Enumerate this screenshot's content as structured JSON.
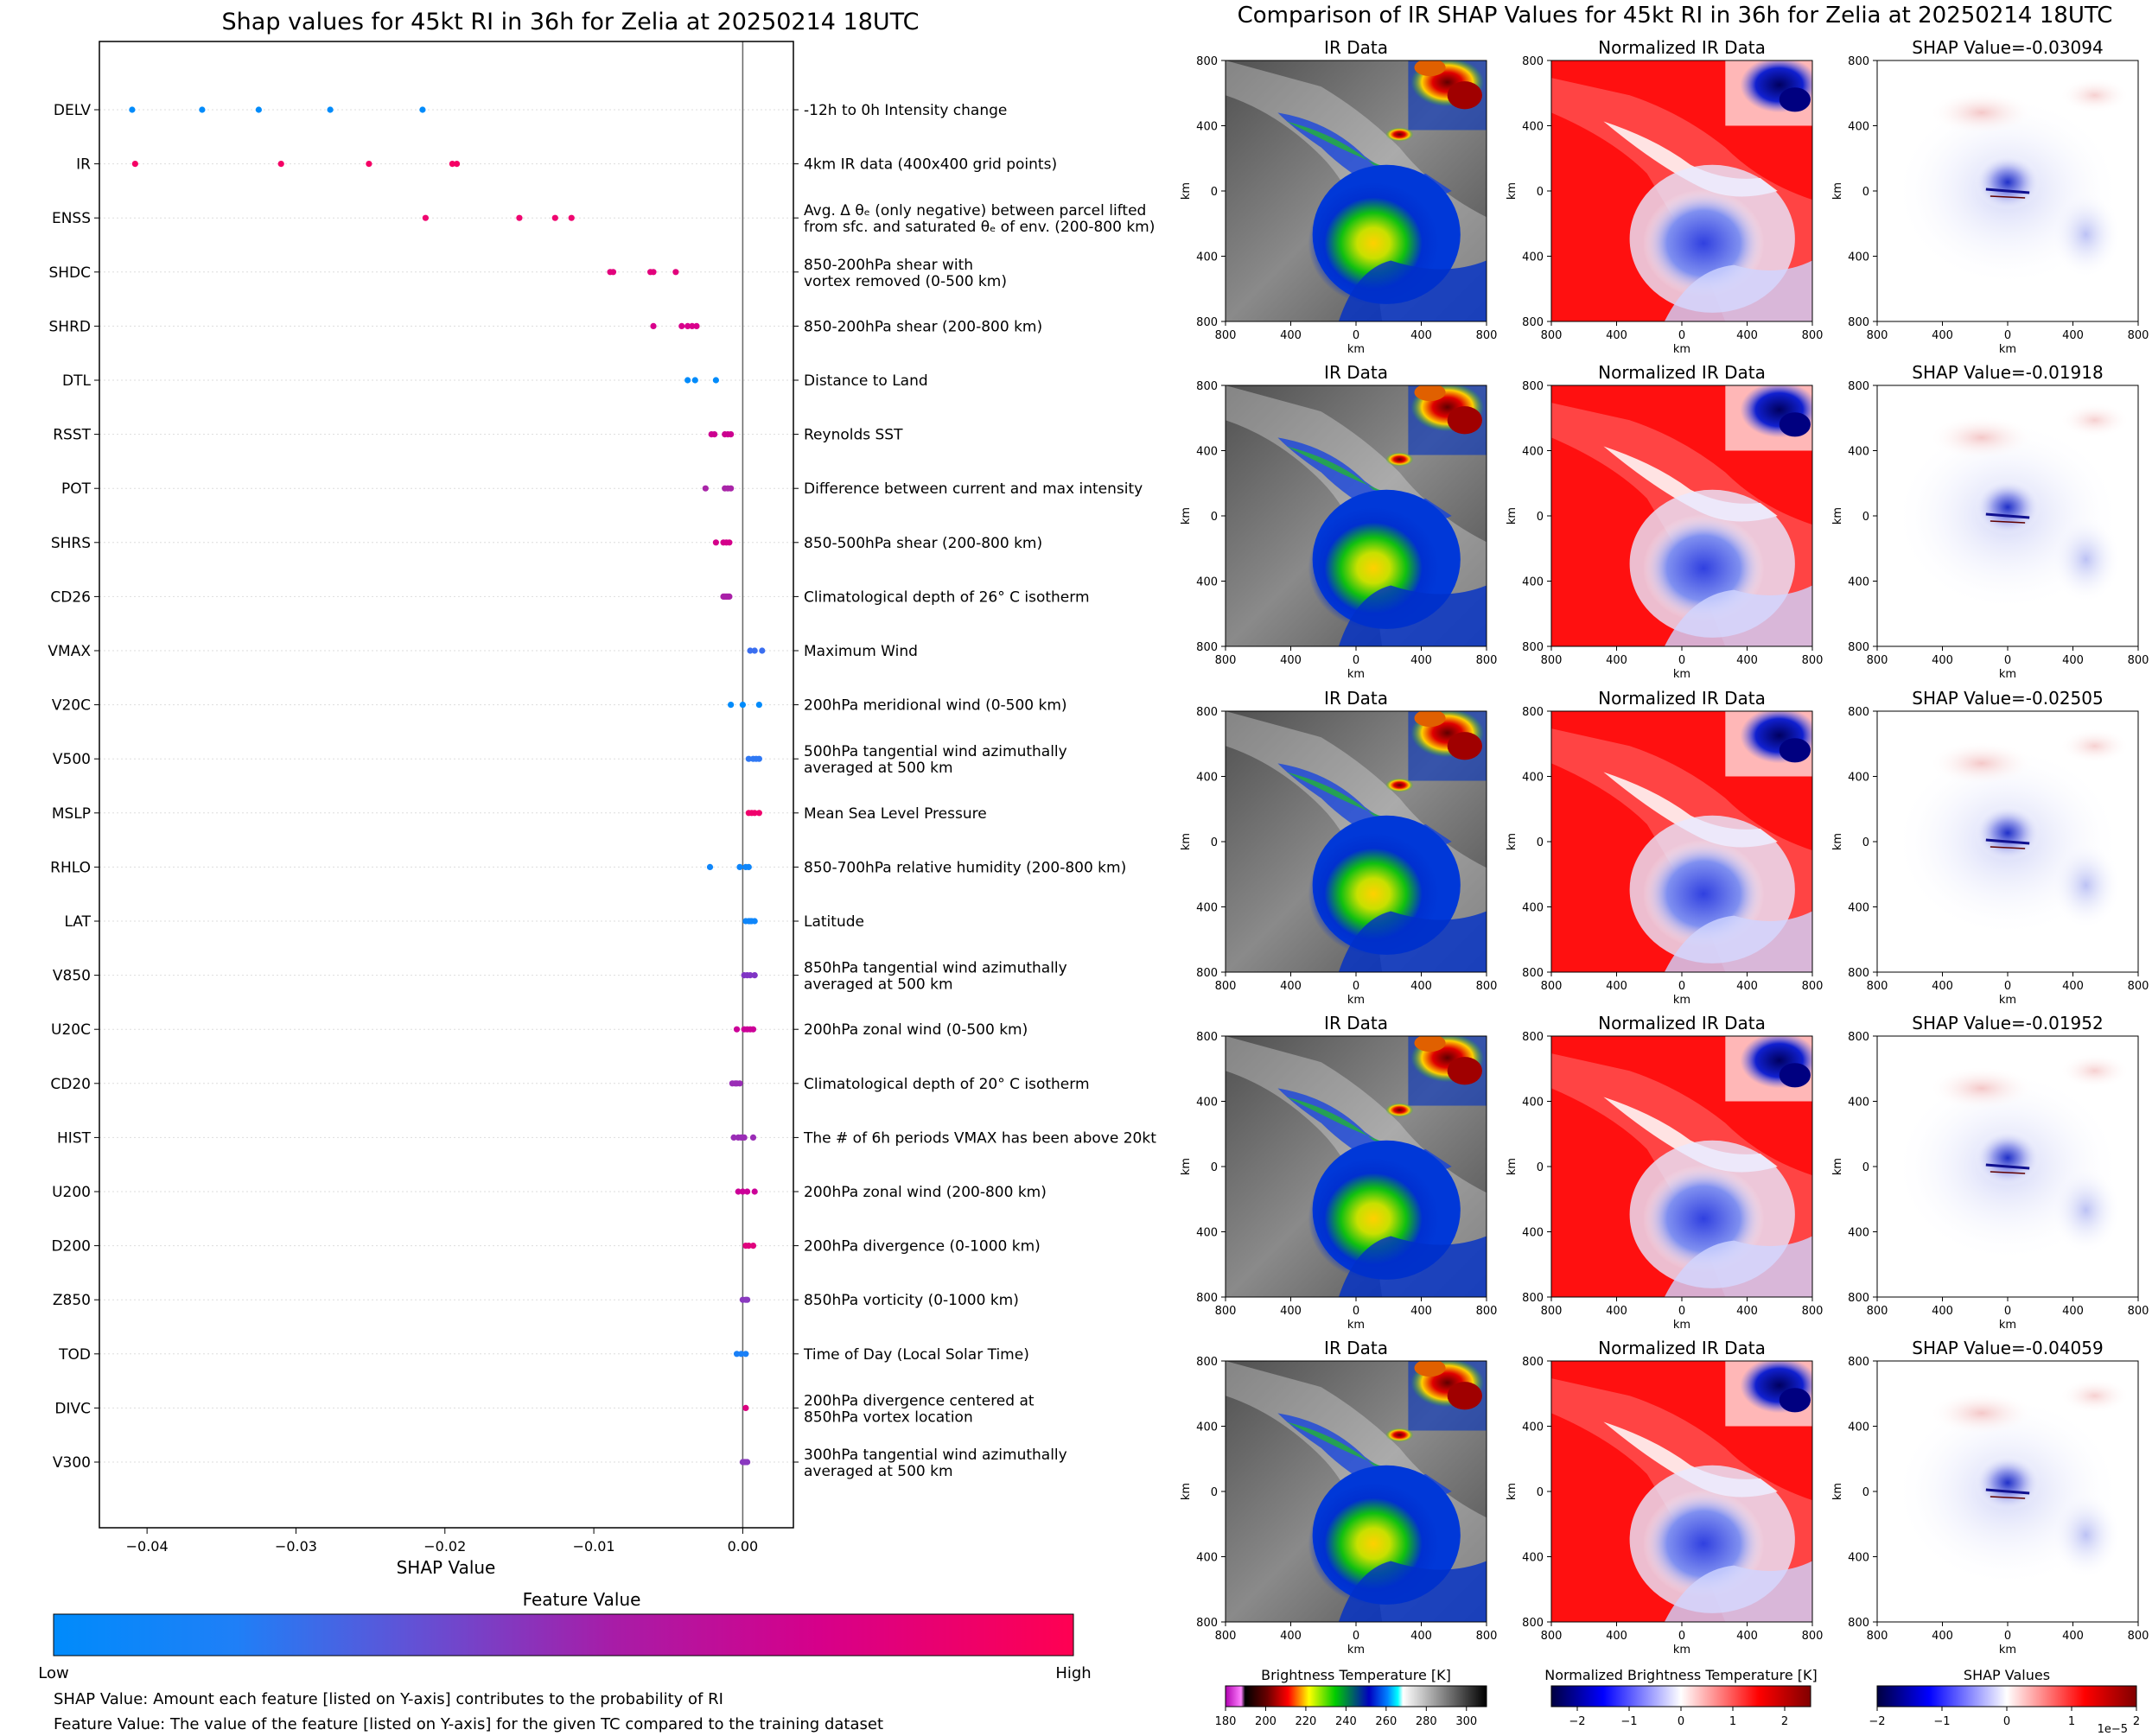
{
  "chart_data": [
    {
      "type": "scatter",
      "subtype": "shap-beeswarm",
      "title": "Shap values for 45kt RI in 36h for Zelia at 20250214 18UTC",
      "xlabel": "SHAP Value",
      "xlim": [
        -0.0432,
        0.0034
      ],
      "xticks": [
        -0.04,
        -0.03,
        -0.02,
        -0.01,
        0.0
      ],
      "xtick_labels": [
        "−0.04",
        "−0.03",
        "−0.02",
        "−0.01",
        "0.00"
      ],
      "colorbar": {
        "title": "Feature Value",
        "low_label": "Low",
        "high_label": "High",
        "low_color": "#008bfb",
        "high_color": "#ff0052"
      },
      "footnotes": [
        "SHAP Value: Amount each feature [listed on Y-axis] contributes to the probability of RI",
        "Feature Value: The value of the feature [listed on Y-axis] for the given TC compared to the training dataset"
      ],
      "features": [
        {
          "name": "DELV",
          "desc": [
            "-12h to 0h Intensity change"
          ],
          "color": "#008bfb",
          "values": [
            -0.041,
            -0.0363,
            -0.0325,
            -0.0277,
            -0.0215
          ]
        },
        {
          "name": "IR",
          "desc": [
            "4km IR data (400x400 grid points)"
          ],
          "color": "#f50065",
          "values": [
            -0.0408,
            -0.031,
            -0.0251,
            -0.0195,
            -0.0192
          ]
        },
        {
          "name": "ENSS",
          "desc": [
            "Avg. Δ θₑ (only negative) between parcel lifted",
            "from sfc. and saturated θₑ of env. (200-800 km)"
          ],
          "color": "#ef0670",
          "values": [
            -0.0213,
            -0.015,
            -0.0126,
            -0.0115
          ]
        },
        {
          "name": "SHDC",
          "desc": [
            "850-200hPa shear with",
            "vortex removed (0-500 km)"
          ],
          "color": "#e2007c",
          "values": [
            -0.0089,
            -0.0087,
            -0.0062,
            -0.006,
            -0.0045
          ]
        },
        {
          "name": "SHRD",
          "desc": [
            "850-200hPa shear (200-800 km)"
          ],
          "color": "#d9008c",
          "values": [
            -0.006,
            -0.0041,
            -0.0037,
            -0.0034,
            -0.0031
          ]
        },
        {
          "name": "DTL",
          "desc": [
            "Distance to Land"
          ],
          "color": "#008bfb",
          "values": [
            -0.0037,
            -0.0032,
            -0.0018
          ]
        },
        {
          "name": "RSST",
          "desc": [
            "Reynolds SST"
          ],
          "color": "#cc0090",
          "values": [
            -0.0021,
            -0.0019,
            -0.0012,
            -0.001,
            -0.0008
          ]
        },
        {
          "name": "POT",
          "desc": [
            "Difference between current and max intensity"
          ],
          "color": "#a925a8",
          "values": [
            -0.0025,
            -0.0012,
            -0.001,
            -0.0008
          ]
        },
        {
          "name": "SHRS",
          "desc": [
            "850-500hPa shear (200-800 km)"
          ],
          "color": "#d4008a",
          "values": [
            -0.0018,
            -0.0013,
            -0.0011,
            -0.0009
          ]
        },
        {
          "name": "CD26",
          "desc": [
            "Climatological depth of 26° C isotherm"
          ],
          "color": "#a920a8",
          "values": [
            -0.0013,
            -0.0012,
            -0.0011,
            -0.001,
            -0.0009
          ]
        },
        {
          "name": "VMAX",
          "desc": [
            "Maximum Wind"
          ],
          "color": "#3a6ef0",
          "values": [
            0.0005,
            0.0008,
            0.0013
          ]
        },
        {
          "name": "V20C",
          "desc": [
            "200hPa meridional wind (0-500 km)"
          ],
          "color": "#008bfb",
          "values": [
            -0.0008,
            0.0,
            0.0011
          ]
        },
        {
          "name": "V500",
          "desc": [
            "500hPa tangential wind azimuthally",
            "averaged at 500 km"
          ],
          "color": "#2f78f4",
          "values": [
            0.0004,
            0.0007,
            0.0009,
            0.0011
          ]
        },
        {
          "name": "MSLP",
          "desc": [
            "Mean Sea Level Pressure"
          ],
          "color": "#f0006c",
          "values": [
            0.0004,
            0.0006,
            0.0008,
            0.0011
          ]
        },
        {
          "name": "RHLO",
          "desc": [
            "850-700hPa relative humidity (200-800 km)"
          ],
          "color": "#0f86fa",
          "values": [
            -0.0022,
            -0.0002,
            0.0002,
            0.0004
          ]
        },
        {
          "name": "LAT",
          "desc": [
            "Latitude"
          ],
          "color": "#0f86fa",
          "values": [
            0.0002,
            0.0004,
            0.0005,
            0.0006,
            0.0008
          ]
        },
        {
          "name": "V850",
          "desc": [
            "850hPa tangential wind azimuthally",
            "averaged at 500 km"
          ],
          "color": "#8035c5",
          "values": [
            0.0001,
            0.0003,
            0.0005,
            0.0008
          ]
        },
        {
          "name": "U20C",
          "desc": [
            "200hPa zonal wind (0-500 km)"
          ],
          "color": "#cc0098",
          "values": [
            -0.0004,
            0.0001,
            0.0003,
            0.0005,
            0.0007
          ]
        },
        {
          "name": "CD20",
          "desc": [
            "Climatological depth of 20° C isotherm"
          ],
          "color": "#9a2db6",
          "values": [
            -0.0007,
            -0.0005,
            -0.0004,
            -0.0002
          ]
        },
        {
          "name": "HIST",
          "desc": [
            "The # of 6h periods VMAX has been above 20kt"
          ],
          "color": "#9a2db6",
          "values": [
            -0.0006,
            -0.0003,
            -0.0001,
            0.0001,
            0.0007
          ]
        },
        {
          "name": "U200",
          "desc": [
            "200hPa zonal wind (200-800 km)"
          ],
          "color": "#cc0098",
          "values": [
            -0.0003,
            0.0,
            0.0003,
            0.0008
          ]
        },
        {
          "name": "D200",
          "desc": [
            "200hPa divergence (0-1000 km)"
          ],
          "color": "#e0047e",
          "values": [
            0.0002,
            0.0004,
            0.0007
          ]
        },
        {
          "name": "Z850",
          "desc": [
            "850hPa vorticity (0-1000 km)"
          ],
          "color": "#8a39c0",
          "values": [
            0.0,
            0.0002,
            0.0003
          ]
        },
        {
          "name": "TOD",
          "desc": [
            "Time of Day (Local Solar Time)"
          ],
          "color": "#1a80f7",
          "values": [
            -0.0004,
            -0.0001,
            0.0002
          ]
        },
        {
          "name": "DIVC",
          "desc": [
            "200hPa divergence centered at",
            "850hPa vortex location"
          ],
          "color": "#dc0080",
          "values": [
            0.0002
          ]
        },
        {
          "name": "V300",
          "desc": [
            "300hPa tangential wind azimuthally",
            "averaged at 500 km"
          ],
          "color": "#8a39c0",
          "values": [
            0.0,
            0.0001,
            0.0002,
            0.0003
          ]
        }
      ]
    },
    {
      "type": "heatmap",
      "title": "Comparison of IR SHAP Values for 45kt RI in 36h for Zelia at 20250214 18UTC",
      "column_titles": [
        "IR Data",
        "Normalized IR Data"
      ],
      "shap_titles": [
        "SHAP Value=-0.03094",
        "SHAP Value=-0.01918",
        "SHAP Value=-0.02505",
        "SHAP Value=-0.01952",
        "SHAP Value=-0.04059"
      ],
      "axis_label": "km",
      "axis_ticks": [
        "800",
        "400",
        "0",
        "400",
        "800"
      ],
      "axis_range": [
        -800,
        800
      ],
      "colorbars": [
        {
          "title": "Brightness Temperature [K]",
          "ticks": [
            "180",
            "200",
            "220",
            "240",
            "260",
            "280",
            "300"
          ],
          "range": [
            180,
            310
          ]
        },
        {
          "title": "Normalized Brightness Temperature [K]",
          "ticks": [
            "−2",
            "−1",
            "0",
            "1",
            "2"
          ],
          "range": [
            -2.5,
            2.5
          ]
        },
        {
          "title": "SHAP Values",
          "ticks": [
            "−2",
            "−1",
            "0",
            "1",
            "2"
          ],
          "range": [
            -2,
            2
          ],
          "multiplier": "1e−5"
        }
      ]
    }
  ]
}
